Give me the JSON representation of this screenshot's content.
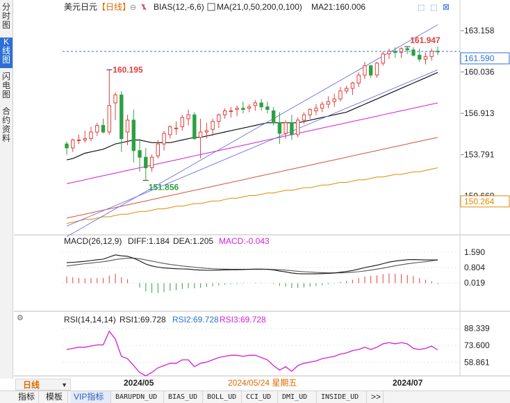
{
  "sidebar": {
    "tabs": [
      "分时图",
      "K线图",
      "闪电图",
      "合约资料"
    ],
    "active": 1
  },
  "header": {
    "symbol": "美元日元",
    "period_tag": "【日线】",
    "bias_label": "BIAS(12,-6,6)",
    "ma_label": "MA(21,0,50,200,0,100)",
    "ma21_value": "MA21:160.006"
  },
  "price_axis": {
    "ticks": [
      "163.158",
      "160.036",
      "156.913",
      "153.791",
      "150.669"
    ],
    "tick_values": [
      163.158,
      160.036,
      156.913,
      153.791,
      150.669
    ],
    "current_label": "161.590",
    "current_value": 161.59,
    "ma_tag_label": "150.264",
    "ma_tag_value": 150.264
  },
  "annotations": {
    "high_label": "160.195",
    "high_value": 160.195,
    "low_label": "151.856",
    "low_value": 151.856,
    "recent_high_label": "161.947",
    "recent_high_value": 161.947
  },
  "macd_panel": {
    "header_name": "MACD(26,12,9)",
    "diff": "DIFF:1.184",
    "dea": "DEA:1.205",
    "macd": "MACD:-0.043",
    "ticks": [
      "1.590",
      "0.804",
      "0.019"
    ],
    "tick_values": [
      1.59,
      0.804,
      0.019
    ]
  },
  "rsi_panel": {
    "header_name": "RSI(14,14,14)",
    "rsi1": "RSI1:69.728",
    "rsi2": "RSI2:69.728",
    "rsi3": "RSI3:69.728",
    "ticks": [
      "88.339",
      "73.600",
      "58.861"
    ],
    "tick_values": [
      88.339,
      73.6,
      58.861
    ]
  },
  "time_axis": {
    "labels": [
      "2024/05",
      "2024/07"
    ],
    "cursor_label": "2024/05/24 星期五"
  },
  "period_select": "日线",
  "bottom_tabs": [
    "指标",
    "模板",
    "VIP指标",
    "BARUPDN_UD",
    "BIAS_UD",
    "BOLL_UD",
    "CCI_UD",
    "DMI_UD",
    "INSIDE_UD",
    ">>"
  ],
  "bottom_active": 2,
  "colors": {
    "up": "#e0403a",
    "down": "#2ea043",
    "ma21": "#111111",
    "ma50": "#d21fd2",
    "ma200": "#d2553a",
    "ma100": "#e08a00",
    "channel": "#6a6ee6",
    "price_line": "#2d6fd6",
    "macd_diff": "#111111",
    "macd_dea": "#555555",
    "rsi": "#d21fd2",
    "tick_orange": "#e06b00"
  },
  "chart_data": {
    "type": "candlestick",
    "title": "美元日元 日线",
    "candles_ohlc": [
      [
        154.6,
        154.8,
        153.8,
        154.3
      ],
      [
        154.3,
        155.0,
        154.0,
        154.9
      ],
      [
        154.9,
        155.3,
        154.6,
        154.9
      ],
      [
        154.9,
        155.6,
        154.7,
        155.0
      ],
      [
        155.0,
        155.9,
        154.8,
        155.5
      ],
      [
        155.5,
        156.2,
        155.2,
        156.0
      ],
      [
        156.0,
        156.5,
        155.4,
        155.5
      ],
      [
        155.5,
        160.2,
        155.3,
        157.5
      ],
      [
        157.7,
        158.5,
        156.4,
        158.3
      ],
      [
        158.3,
        158.6,
        154.0,
        155.0
      ],
      [
        155.5,
        156.8,
        154.5,
        156.4
      ],
      [
        156.4,
        157.2,
        153.2,
        154.1
      ],
      [
        154.1,
        155.0,
        152.5,
        153.6
      ],
      [
        153.6,
        154.3,
        151.9,
        152.8
      ],
      [
        152.8,
        153.8,
        152.5,
        153.6
      ],
      [
        153.7,
        154.9,
        153.5,
        154.6
      ],
      [
        154.6,
        155.6,
        154.1,
        155.4
      ],
      [
        155.3,
        156.0,
        155.0,
        155.9
      ],
      [
        155.8,
        156.3,
        155.3,
        155.8
      ],
      [
        155.9,
        156.8,
        155.6,
        156.6
      ],
      [
        156.5,
        157.2,
        156.0,
        156.8
      ],
      [
        156.8,
        157.0,
        154.9,
        155.0
      ],
      [
        155.1,
        156.5,
        153.5,
        155.5
      ],
      [
        155.5,
        156.2,
        155.0,
        155.6
      ],
      [
        155.7,
        156.5,
        155.2,
        156.3
      ],
      [
        156.3,
        156.9,
        155.8,
        156.8
      ],
      [
        156.8,
        157.3,
        156.5,
        157.1
      ],
      [
        157.1,
        157.4,
        156.6,
        157.1
      ],
      [
        157.2,
        157.5,
        156.7,
        157.3
      ],
      [
        157.3,
        157.8,
        156.9,
        157.2
      ],
      [
        157.3,
        157.6,
        157.0,
        157.4
      ],
      [
        157.5,
        157.9,
        157.1,
        157.7
      ],
      [
        157.7,
        158.0,
        157.1,
        157.4
      ],
      [
        157.4,
        157.8,
        156.9,
        157.2
      ],
      [
        157.1,
        157.4,
        156.0,
        156.2
      ],
      [
        156.2,
        157.0,
        154.6,
        155.4
      ],
      [
        155.4,
        156.4,
        155.0,
        156.2
      ],
      [
        156.2,
        156.8,
        154.9,
        155.3
      ],
      [
        155.3,
        156.6,
        155.1,
        156.4
      ],
      [
        156.4,
        157.0,
        156.1,
        156.8
      ],
      [
        156.8,
        157.3,
        156.5,
        157.2
      ],
      [
        157.1,
        157.6,
        156.8,
        157.3
      ],
      [
        157.3,
        157.8,
        157.0,
        157.6
      ],
      [
        157.6,
        158.2,
        157.3,
        157.8
      ],
      [
        157.8,
        158.4,
        157.4,
        158.0
      ],
      [
        158.0,
        158.9,
        157.8,
        158.6
      ],
      [
        158.6,
        159.0,
        158.4,
        158.8
      ],
      [
        158.8,
        159.3,
        158.3,
        159.2
      ],
      [
        159.2,
        160.0,
        158.9,
        159.8
      ],
      [
        159.8,
        160.8,
        159.5,
        160.5
      ],
      [
        160.5,
        160.6,
        159.6,
        159.8
      ],
      [
        159.8,
        160.8,
        159.6,
        160.7
      ],
      [
        160.7,
        161.6,
        160.5,
        161.4
      ],
      [
        161.4,
        161.8,
        161.0,
        161.6
      ],
      [
        161.6,
        161.9,
        161.1,
        161.5
      ],
      [
        161.5,
        161.9,
        161.1,
        161.8
      ],
      [
        161.8,
        161.95,
        161.4,
        161.7
      ],
      [
        161.7,
        161.9,
        161.2,
        161.3
      ],
      [
        161.3,
        161.8,
        160.8,
        161.0
      ],
      [
        161.0,
        161.5,
        160.6,
        161.2
      ],
      [
        161.2,
        161.8,
        160.9,
        161.6
      ],
      [
        161.6,
        161.95,
        161.3,
        161.59
      ]
    ],
    "ma21": [
      153.4,
      153.5,
      153.7,
      153.9,
      154.0,
      154.1,
      154.2,
      154.4,
      154.6,
      154.7,
      154.8,
      154.9,
      154.9,
      154.8,
      154.7,
      154.7,
      154.7,
      154.7,
      154.8,
      154.9,
      155.0,
      155.1,
      155.1,
      155.2,
      155.3,
      155.4,
      155.5,
      155.6,
      155.7,
      155.8,
      155.9,
      156.0,
      156.1,
      156.2,
      156.2,
      156.2,
      156.2,
      156.2,
      156.2,
      156.3,
      156.4,
      156.5,
      156.6,
      156.7,
      156.8,
      156.9,
      157.0,
      157.2,
      157.4,
      157.6,
      157.8,
      158.0,
      158.2,
      158.4,
      158.6,
      158.8,
      159.0,
      159.2,
      159.4,
      159.6,
      159.8,
      160.0
    ],
    "ma50": [
      151.6,
      151.7,
      151.8,
      151.9,
      152.0,
      152.1,
      152.2,
      152.3,
      152.4,
      152.5,
      152.6,
      152.7,
      152.8,
      152.9,
      153.0,
      153.1,
      153.2,
      153.3,
      153.4,
      153.5,
      153.6,
      153.7,
      153.8,
      153.9,
      154.0,
      154.1,
      154.2,
      154.3,
      154.4,
      154.5,
      154.6,
      154.7,
      154.8,
      154.9,
      155.0,
      155.1,
      155.2,
      155.3,
      155.4,
      155.5,
      155.6,
      155.7,
      155.8,
      155.9,
      156.0,
      156.1,
      156.2,
      156.3,
      156.4,
      156.5,
      156.6,
      156.7,
      156.8,
      156.9,
      157.0,
      157.1,
      157.2,
      157.3,
      157.4,
      157.5,
      157.6,
      157.7
    ],
    "ma200": [
      149.0,
      149.1,
      149.2,
      149.3,
      149.4,
      149.5,
      149.6,
      149.7,
      149.8,
      149.9,
      150.0,
      150.1,
      150.2,
      150.3,
      150.4,
      150.5,
      150.6,
      150.7,
      150.8,
      150.9,
      151.0,
      151.1,
      151.2,
      151.3,
      151.4,
      151.5,
      151.6,
      151.7,
      151.8,
      151.9,
      152.0,
      152.1,
      152.2,
      152.3,
      152.4,
      152.5,
      152.6,
      152.7,
      152.8,
      152.9,
      153.0,
      153.1,
      153.2,
      153.3,
      153.4,
      153.5,
      153.6,
      153.7,
      153.8,
      153.9,
      154.0,
      154.1,
      154.2,
      154.3,
      154.4,
      154.5,
      154.6,
      154.7,
      154.8,
      154.9,
      155.0,
      155.1
    ],
    "ma100": [
      148.6,
      148.7,
      148.8,
      148.9,
      148.9,
      149.0,
      149.1,
      149.1,
      149.2,
      149.3,
      149.3,
      149.4,
      149.5,
      149.5,
      149.6,
      149.7,
      149.7,
      149.8,
      149.9,
      149.9,
      150.0,
      150.1,
      150.1,
      150.2,
      150.3,
      150.3,
      150.4,
      150.5,
      150.5,
      150.6,
      150.7,
      150.7,
      150.8,
      150.9,
      150.9,
      151.0,
      151.1,
      151.1,
      151.2,
      151.3,
      151.3,
      151.4,
      151.5,
      151.5,
      151.6,
      151.7,
      151.7,
      151.8,
      151.9,
      151.9,
      152.0,
      152.1,
      152.1,
      152.2,
      152.3,
      152.3,
      152.4,
      152.5,
      152.5,
      152.6,
      152.7,
      152.8
    ],
    "macd_diff": [
      1.05,
      1.07,
      1.09,
      1.12,
      1.16,
      1.2,
      1.23,
      1.34,
      1.45,
      1.4,
      1.38,
      1.28,
      1.14,
      0.98,
      0.88,
      0.82,
      0.78,
      0.76,
      0.74,
      0.73,
      0.72,
      0.69,
      0.67,
      0.66,
      0.66,
      0.67,
      0.68,
      0.69,
      0.69,
      0.7,
      0.71,
      0.72,
      0.72,
      0.71,
      0.68,
      0.62,
      0.58,
      0.52,
      0.49,
      0.48,
      0.48,
      0.48,
      0.49,
      0.5,
      0.52,
      0.56,
      0.6,
      0.65,
      0.72,
      0.8,
      0.86,
      0.92,
      1.0,
      1.08,
      1.13,
      1.17,
      1.2,
      1.21,
      1.2,
      1.19,
      1.19,
      1.184
    ],
    "macd_dea": [
      0.88,
      0.92,
      0.96,
      1.0,
      1.03,
      1.07,
      1.1,
      1.15,
      1.21,
      1.25,
      1.28,
      1.28,
      1.25,
      1.19,
      1.13,
      1.07,
      1.01,
      0.96,
      0.92,
      0.88,
      0.85,
      0.82,
      0.79,
      0.76,
      0.74,
      0.73,
      0.72,
      0.71,
      0.71,
      0.71,
      0.71,
      0.71,
      0.71,
      0.71,
      0.7,
      0.69,
      0.67,
      0.64,
      0.61,
      0.59,
      0.57,
      0.55,
      0.54,
      0.53,
      0.53,
      0.53,
      0.54,
      0.56,
      0.59,
      0.63,
      0.67,
      0.72,
      0.77,
      0.83,
      0.89,
      0.94,
      0.99,
      1.03,
      1.07,
      1.1,
      1.14,
      1.205
    ],
    "macd_hist": [
      0.34,
      0.3,
      0.26,
      0.24,
      0.26,
      0.26,
      0.26,
      0.38,
      0.48,
      0.3,
      0.2,
      0.0,
      -0.22,
      -0.42,
      -0.5,
      -0.5,
      -0.46,
      -0.4,
      -0.36,
      -0.3,
      -0.26,
      -0.26,
      -0.24,
      -0.2,
      -0.16,
      -0.12,
      -0.08,
      -0.04,
      -0.04,
      -0.02,
      0.0,
      0.02,
      0.02,
      0.0,
      -0.04,
      -0.14,
      -0.18,
      -0.24,
      -0.24,
      -0.22,
      -0.18,
      -0.14,
      -0.1,
      -0.06,
      -0.02,
      0.06,
      0.12,
      0.18,
      0.26,
      0.34,
      0.38,
      0.4,
      0.46,
      0.5,
      0.48,
      0.46,
      0.42,
      0.36,
      0.26,
      0.18,
      0.1,
      -0.043
    ],
    "rsi": [
      70,
      71,
      72,
      72,
      73,
      74,
      74,
      86,
      79,
      64,
      62,
      56,
      50,
      47,
      50,
      54,
      56,
      58,
      58,
      61,
      61,
      55,
      58,
      59,
      61,
      63,
      64,
      65,
      65,
      64,
      65,
      65,
      63,
      61,
      56,
      52,
      55,
      51,
      56,
      58,
      59,
      60,
      62,
      63,
      64,
      66,
      67,
      69,
      70,
      72,
      70,
      72,
      75,
      76,
      75,
      76,
      75,
      71,
      70,
      71,
      73,
      69.7
    ],
    "ylim_price": [
      148.0,
      164.0
    ],
    "ylim_macd": [
      -0.8,
      1.8
    ],
    "ylim_rsi": [
      50,
      90
    ],
    "channel_upper": [
      [
        0,
        147.6
      ],
      [
        61,
        163.6
      ]
    ],
    "channel_lower": [
      [
        0,
        148.4
      ],
      [
        61,
        160.2
      ]
    ],
    "high_point_index": 7,
    "low_point_index": 13,
    "recent_high_index": 56
  }
}
